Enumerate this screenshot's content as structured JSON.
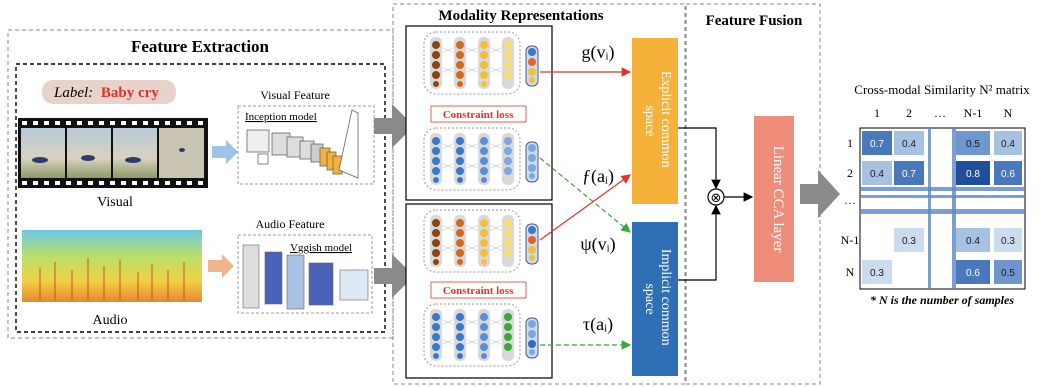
{
  "feature_extraction": {
    "title": "Feature Extraction",
    "label_prefix": "Label:",
    "label_value": "Baby cry",
    "visual_feature": "Visual Feature",
    "inception_model": "Inception model",
    "visual": "Visual",
    "audio_feature": "Audio Feature",
    "vggish_model": "Vggish model",
    "audio": "Audio"
  },
  "modality": {
    "title": "Modality Representations",
    "constraint_loss_1": "Constraint loss",
    "constraint_loss_2": "Constraint loss",
    "g": "g(vᵢ)",
    "f": "ƒ(aᵢ)",
    "psi": "ψ(vᵢ)",
    "tau": "τ(aᵢ)"
  },
  "fusion": {
    "title": "Feature Fusion",
    "explicit": "Explicit common space",
    "explicit_line1": "Explicit common",
    "explicit_line2": "space",
    "implicit_line1": "Implicit common",
    "implicit_line2": "space",
    "cca": "Linear CCA layer",
    "otimes": "⊗"
  },
  "matrix": {
    "title": "Cross-modal Similarity N² matrix",
    "col_labels": [
      "1",
      "2",
      "…",
      "N-1",
      "N"
    ],
    "row_labels": [
      "1",
      "2",
      "…",
      "N-1",
      "N"
    ],
    "cells": [
      [
        "0.7",
        "0.4",
        "",
        "0.5",
        "0.4"
      ],
      [
        "0.4",
        "0.7",
        "",
        "0.8",
        "0.6"
      ],
      [
        "",
        "",
        "",
        "",
        ""
      ],
      [
        "",
        "0.3",
        "",
        "0.4",
        "0.3"
      ],
      [
        "0.3",
        "",
        "",
        "0.6",
        "0.5"
      ]
    ],
    "note": "* N is the number of samples"
  },
  "colors": {
    "label_red": "#e0312b",
    "label_bg": "#e8d2cc",
    "orange_box": "#f4b23b",
    "blue_box": "#2f6fb6",
    "cca_box": "#ef8c7a",
    "red_arrow": "#e43325",
    "green_arrow": "#3aa83a"
  }
}
